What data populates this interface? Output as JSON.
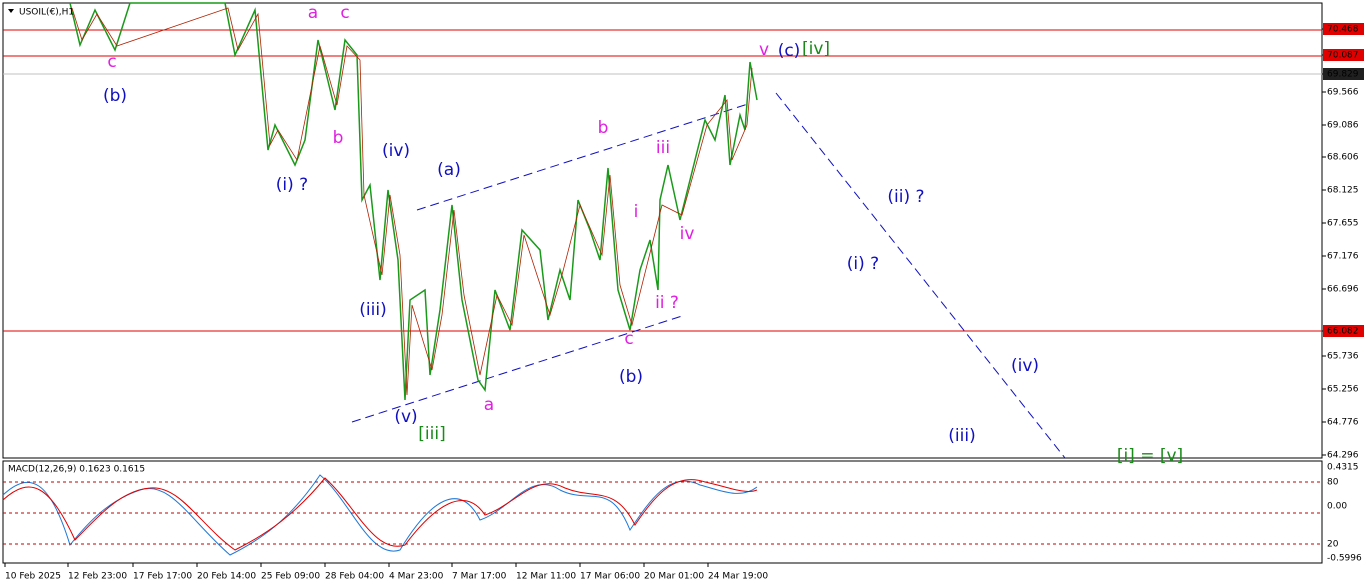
{
  "header": {
    "symbol": "USOIL(€),H1"
  },
  "price_axis": [
    "70.468",
    "70.087",
    "69.829",
    "69.566",
    "69.086",
    "68.606",
    "68.125",
    "67.655",
    "67.176",
    "66.696",
    "66.082",
    "65.736",
    "65.256",
    "64.776",
    "64.296"
  ],
  "time_axis": [
    "10 Feb 2025",
    "12 Feb 23:00",
    "17 Feb 17:00",
    "20 Feb 14:00",
    "25 Feb 09:00",
    "28 Feb 04:00",
    "4 Mar 23:00",
    "7 Mar 17:00",
    "12 Mar 11:00",
    "17 Mar 06:00",
    "20 Mar 01:00",
    "24 Mar 19:00"
  ],
  "macd": {
    "label": "MACD(12,26,9) 0.1623 0.1615",
    "axis": [
      "0.4315",
      "80",
      "0.00",
      "20",
      "-0.5996"
    ]
  },
  "annotations": [
    "c",
    "(b)",
    "a",
    "c",
    "b",
    "(i) ?",
    "(iv)",
    "(a)",
    "(iii)",
    "(v)",
    "[iii]",
    "a",
    "b",
    "iii",
    "i",
    "iv",
    "ii ?",
    "c",
    "(b)",
    "v",
    "(c)",
    "[iv]",
    "(ii) ?",
    "(i) ?",
    "(iv)",
    "(iii)",
    "[i] = [v]"
  ]
}
